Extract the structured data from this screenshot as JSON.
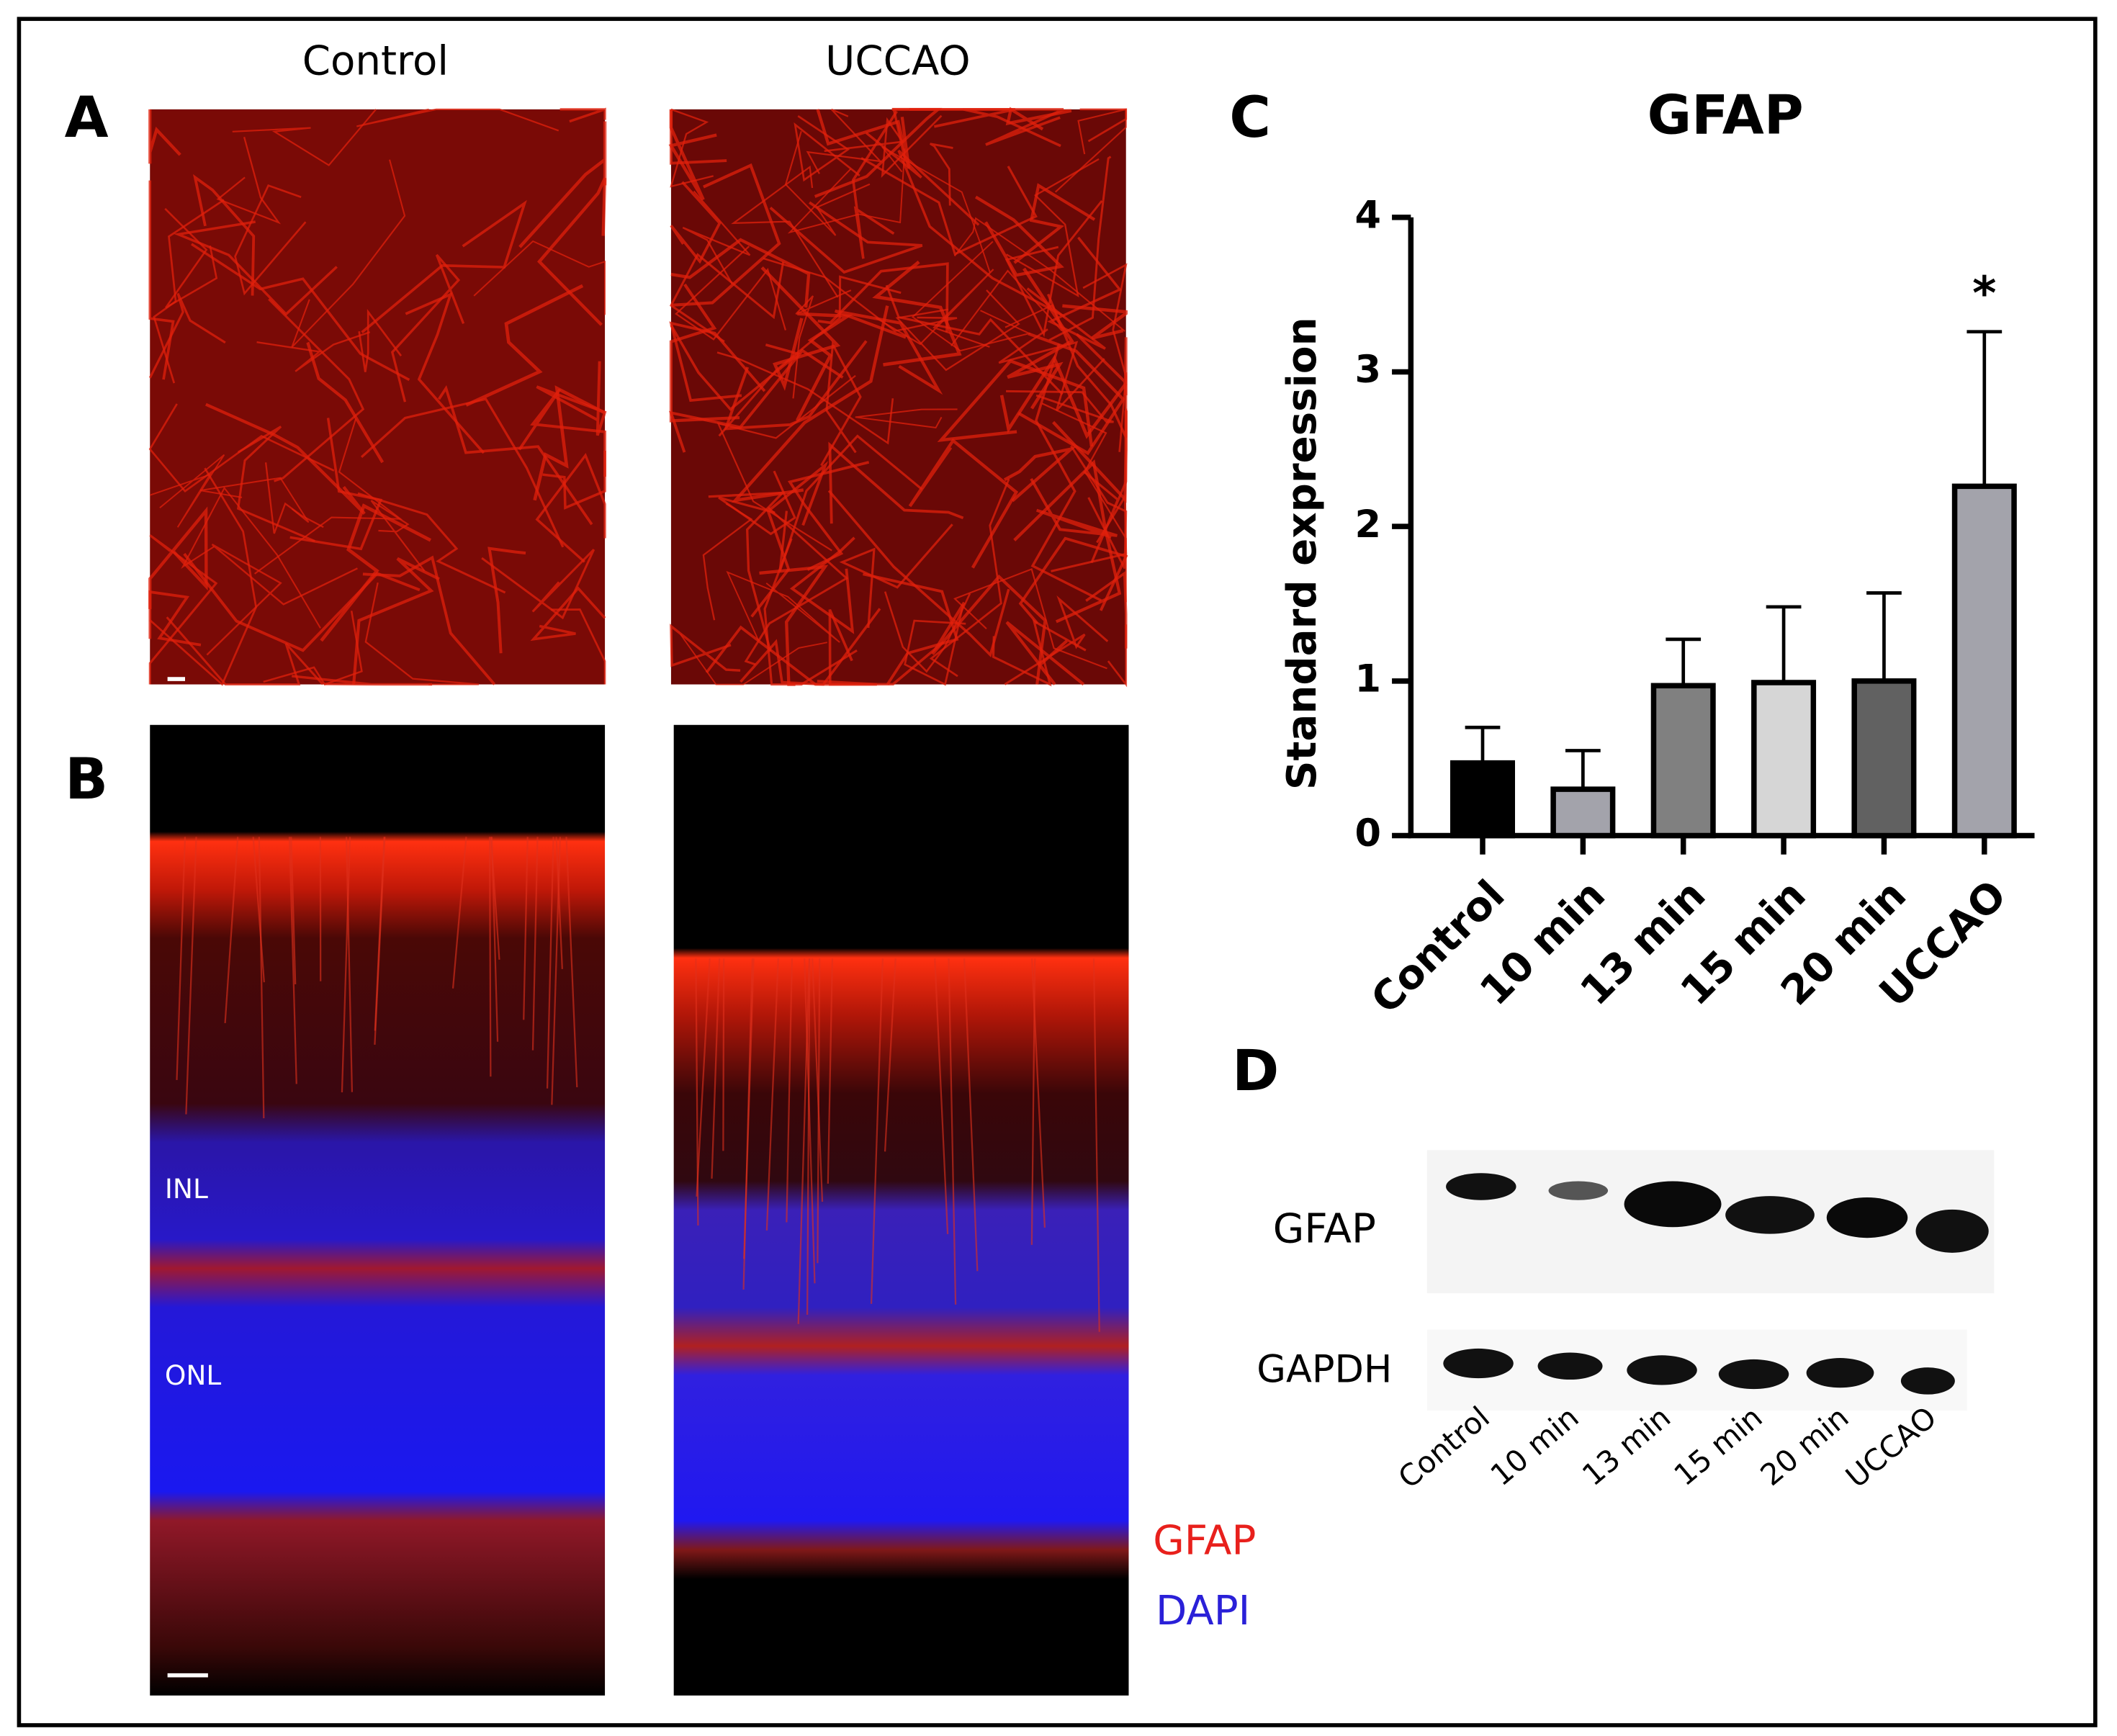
{
  "panels": {
    "a": "A",
    "b": "B",
    "c": "C",
    "d": "D"
  },
  "columns": [
    "Control",
    "UCCAO"
  ],
  "layers": [
    "INL",
    "ONL"
  ],
  "stain_legend": [
    "GFAP",
    "DAPI"
  ],
  "chart_data": {
    "type": "bar",
    "title": "GFAP",
    "y_label": "Standard expression",
    "categories": [
      "Control",
      "10 min",
      "13 min",
      "15 min",
      "20 min",
      "UCCAO"
    ],
    "values": [
      0.47,
      0.3,
      0.97,
      0.99,
      1.0,
      2.26
    ],
    "errors": [
      0.23,
      0.25,
      0.3,
      0.49,
      0.57,
      1.0
    ],
    "colors": [
      "#000000",
      "#a3a3ab",
      "#808080",
      "#d6d6d6",
      "#616161",
      "#a3a3ab"
    ],
    "ylim": [
      0,
      4
    ],
    "yticks": [
      0,
      1,
      2,
      3,
      4
    ],
    "annotations": [
      {
        "category": 5,
        "text": "*"
      }
    ]
  },
  "western_blot": {
    "rows": [
      "GFAP",
      "GAPDH"
    ],
    "lanes": [
      "Control",
      "10 min",
      "13 min",
      "15 min",
      "20 min",
      "UCCAO"
    ]
  }
}
